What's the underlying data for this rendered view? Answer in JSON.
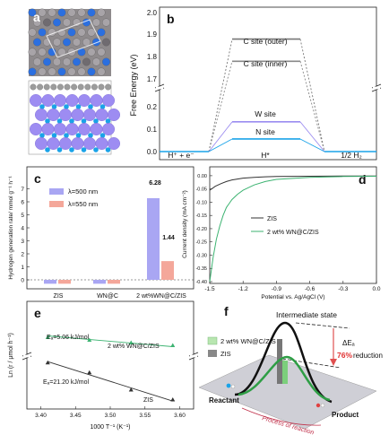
{
  "panels": {
    "a": {
      "label": "a"
    },
    "b": {
      "label": "b",
      "ylabel": "Free Energy (eV)",
      "x_states": [
        "H⁺ + e⁻",
        "H*",
        "1/2 H₂"
      ],
      "upper_ticks": [
        "2.0",
        "1.9",
        "1.8",
        "1.7"
      ],
      "lower_ticks": [
        "0.2",
        "0.1",
        "0.0"
      ],
      "levels": [
        {
          "name": "C site (outer)",
          "value": 1.88,
          "color": "#777777",
          "style": "dotted"
        },
        {
          "name": "C site (inner)",
          "value": 1.78,
          "color": "#888888",
          "style": "dotted"
        },
        {
          "name": "W site",
          "value": 0.13,
          "color": "#9b8cf0",
          "style": "solid"
        },
        {
          "name": "N site",
          "value": 0.055,
          "color": "#1aa3e8",
          "style": "solid"
        }
      ]
    },
    "c": {
      "label": "c",
      "ylabel": "Hydrogen generation rate/ mmol g⁻¹ h⁻¹",
      "legend": [
        "λ=500 nm",
        "λ=550 nm"
      ],
      "yticks": [
        "7",
        "6",
        "5",
        "4",
        "3",
        "2",
        "1",
        "0",
        "-1"
      ],
      "value_labels": [
        "6.28",
        "1.44"
      ]
    },
    "d": {
      "label": "d",
      "ylabel": "Current density (mA cm⁻²)",
      "xlabel": "Potential vs. Ag/AgCl (V)",
      "yticks": [
        "0.00",
        "-0.05",
        "-0.10",
        "-0.15",
        "-0.20",
        "-0.25",
        "-0.30",
        "-0.35",
        "-0.40"
      ],
      "xticks": [
        "-1.5",
        "-1.2",
        "-0.9",
        "-0.6",
        "-0.3",
        "0.0"
      ],
      "legend": [
        "ZIS",
        "2 wt% WN@C/ZIS"
      ]
    },
    "e": {
      "label": "e",
      "ylabel": "Ln (r / μmol h⁻¹)",
      "xlabel": "1000 T⁻¹ (K⁻¹)",
      "xticks": [
        "3.40",
        "3.45",
        "3.50",
        "3.55",
        "3.60"
      ],
      "upper_series": "2 wt% WN@C/ZIS",
      "lower_series": "ZIS",
      "ea_upper": "Eₐ=5.06 kJ/mol",
      "ea_lower": "Eₐ=21.20 kJ/mol"
    },
    "f": {
      "label": "f",
      "title": "Intermediate state",
      "legend": [
        "2 wt% WN@C/ZIS",
        "ZIS"
      ],
      "delta": "ΔEₐ",
      "reduction_pct": "76%",
      "reduction_word": "reduction",
      "reactant": "Reactant",
      "product": "Product",
      "process": "Process of reaction"
    }
  },
  "colors": {
    "n_site": "#1aa3e8",
    "w_site": "#9b8cf0",
    "bar_500": "#a9a6f3",
    "bar_550": "#f4a79a",
    "wn_line": "#3cb371",
    "zis_line": "#333333",
    "red_text": "#e03030"
  },
  "chart_data": [
    {
      "panel": "c",
      "type": "bar",
      "categories": [
        "ZIS",
        "WN@C",
        "2 wt%WN@C/ZIS"
      ],
      "series": [
        {
          "name": "λ=500 nm",
          "values": [
            -0.3,
            -0.3,
            6.28
          ]
        },
        {
          "name": "λ=550 nm",
          "values": [
            -0.3,
            -0.3,
            1.44
          ]
        }
      ],
      "ylabel": "Hydrogen generation rate/ mmol g⁻¹ h⁻¹",
      "ylim": [
        -1,
        7
      ]
    },
    {
      "panel": "d",
      "type": "line",
      "xlabel": "Potential vs. Ag/AgCl (V)",
      "ylabel": "Current density (mA cm⁻²)",
      "xlim": [
        -1.5,
        0.0
      ],
      "ylim": [
        -0.4,
        0.02
      ],
      "series": [
        {
          "name": "ZIS",
          "x": [
            -1.5,
            -1.45,
            -1.4,
            -1.35,
            -1.3,
            -1.2,
            -1.1,
            -1.0,
            -0.9,
            -0.6,
            -0.3,
            0.0
          ],
          "y": [
            -0.055,
            -0.04,
            -0.03,
            -0.022,
            -0.016,
            -0.009,
            -0.006,
            -0.004,
            -0.003,
            -0.002,
            -0.0015,
            -0.001
          ]
        },
        {
          "name": "2 wt% WN@C/ZIS",
          "x": [
            -1.5,
            -1.47,
            -1.44,
            -1.41,
            -1.38,
            -1.35,
            -1.3,
            -1.25,
            -1.2,
            -1.1,
            -1.0,
            -0.9,
            -0.6,
            -0.3,
            0.0
          ],
          "y": [
            -0.4,
            -0.31,
            -0.24,
            -0.19,
            -0.15,
            -0.12,
            -0.09,
            -0.07,
            -0.055,
            -0.035,
            -0.022,
            -0.014,
            -0.006,
            -0.003,
            -0.002
          ]
        }
      ]
    },
    {
      "panel": "e",
      "type": "scatter",
      "xlabel": "1000 T⁻¹ (K⁻¹)",
      "ylabel": "Ln (r / μmol h⁻¹)",
      "xlim": [
        3.38,
        3.62
      ],
      "series": [
        {
          "name": "2 wt% WN@C/ZIS",
          "x": [
            3.41,
            3.47,
            3.53,
            3.59
          ],
          "y": [
            6.14,
            6.13,
            6.12,
            6.11
          ]
        },
        {
          "name": "ZIS",
          "x": [
            3.41,
            3.47,
            3.53,
            3.59
          ],
          "y": [
            2.2,
            2.0,
            1.65,
            1.45
          ]
        }
      ]
    }
  ]
}
